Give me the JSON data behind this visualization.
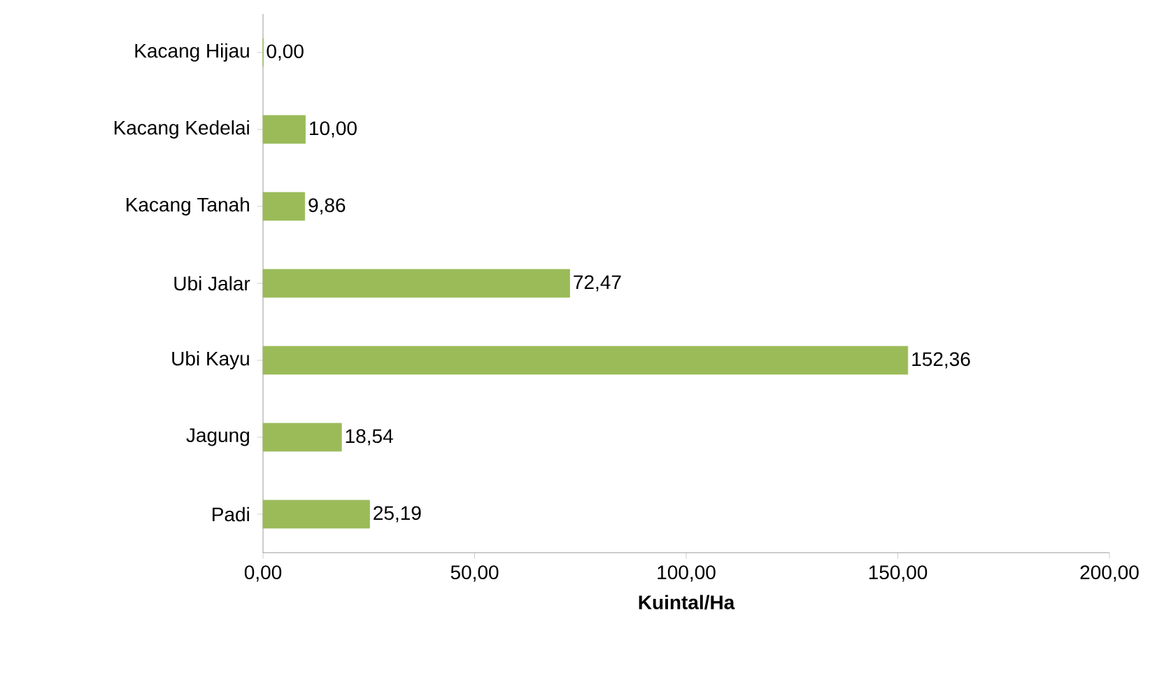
{
  "chart_data": {
    "type": "bar",
    "orientation": "horizontal",
    "xlabel": "Kuintal/Ha",
    "categories": [
      "Kacang Hijau",
      "Kacang Kedelai",
      "Kacang Tanah",
      "Ubi Jalar",
      "Ubi Kayu",
      "Jagung",
      "Padi"
    ],
    "values": [
      0.0,
      10.0,
      9.86,
      72.47,
      152.36,
      18.54,
      25.19
    ],
    "value_labels": [
      "0,00",
      "10,00",
      "9,86",
      "72,47",
      "152,36",
      "18,54",
      "25,19"
    ],
    "color": "#9bbb59",
    "xlim": [
      0,
      200
    ],
    "xticks": [
      {
        "value": 0,
        "label": "0,00"
      },
      {
        "value": 50,
        "label": "50,00"
      },
      {
        "value": 100,
        "label": "100,00"
      },
      {
        "value": 150,
        "label": "150,00"
      },
      {
        "value": 200,
        "label": "200,00"
      }
    ],
    "grid": false
  }
}
